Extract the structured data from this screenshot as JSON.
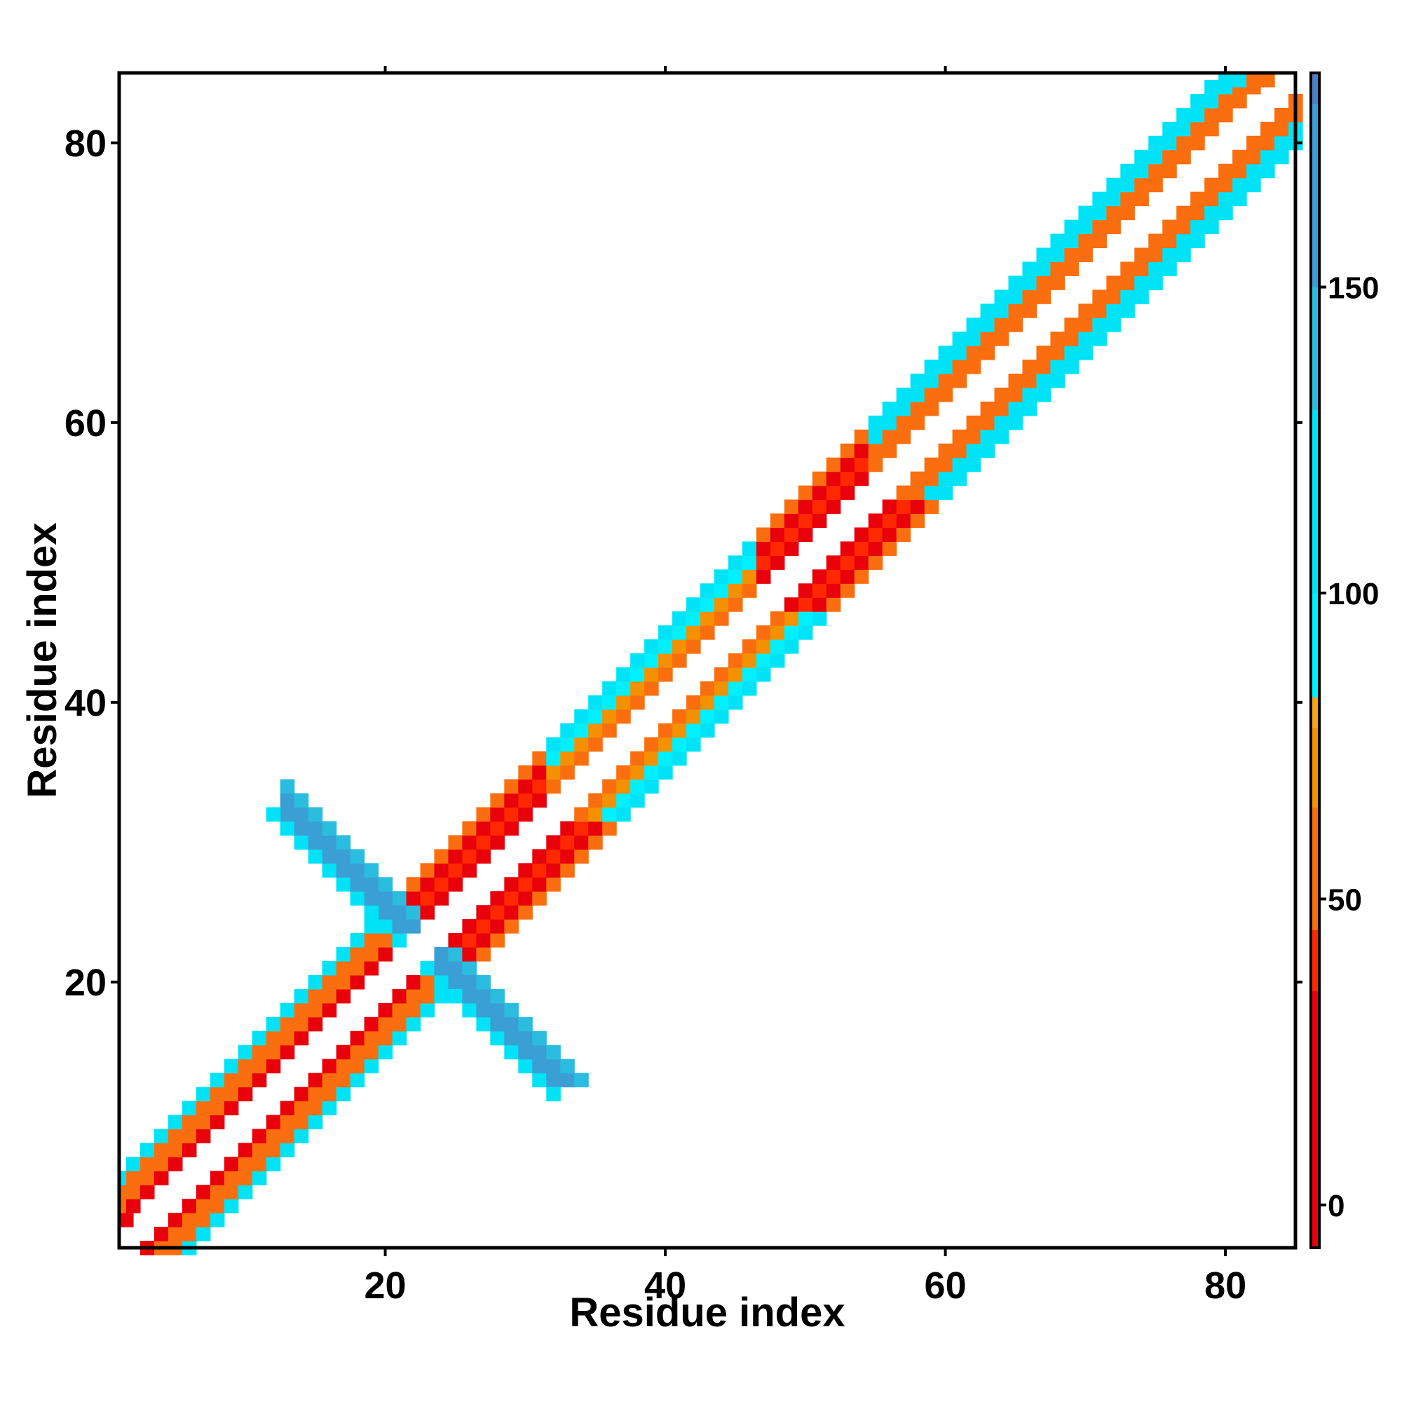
{
  "chart_data": {
    "type": "heatmap",
    "title": "",
    "xlabel": "Residue index",
    "ylabel": "Residue index",
    "xlim": [
      1,
      85
    ],
    "ylim": [
      1,
      85
    ],
    "xticks": [
      20,
      40,
      60,
      80
    ],
    "yticks": [
      20,
      40,
      60,
      80
    ],
    "grid": false,
    "colorbar": {
      "position": "right",
      "range": [
        -7,
        185
      ],
      "ticks": [
        0,
        50,
        100,
        150
      ],
      "stops": [
        {
          "value": -7,
          "color": "#e8000b"
        },
        {
          "value": 35,
          "color": "#ff2800"
        },
        {
          "value": 45,
          "color": "#fa6e0f"
        },
        {
          "value": 65,
          "color": "#f39100"
        },
        {
          "value": 78,
          "color": "#f6a31c"
        },
        {
          "value": 83,
          "color": "#00f0ff"
        },
        {
          "value": 100,
          "color": "#00e3f6"
        },
        {
          "value": 130,
          "color": "#2bbde0"
        },
        {
          "value": 150,
          "color": "#3a9fd4"
        },
        {
          "value": 180,
          "color": "#4a7fc4"
        },
        {
          "value": 185,
          "color": "#ffffff"
        }
      ]
    },
    "description_of_values": "Pairwise values by residue pair; cells shown only near the diagonal band (|i-j| in 2..5) and in an anti-diagonal strip around residues 13-32.",
    "bands": [
      {
        "from": 1,
        "to": 22,
        "offset_values": {
          "2": 10,
          "3": 45,
          "4": 60,
          "5": 110
        }
      },
      {
        "from": 22,
        "to": 32,
        "offset_values": {
          "2": 15,
          "3": 40,
          "4": 20,
          "5": 60
        }
      },
      {
        "from": 32,
        "to": 47,
        "offset_values": {
          "2": 45,
          "3": 70,
          "4": 95,
          "5": 110
        }
      },
      {
        "from": 47,
        "to": 55,
        "offset_values": {
          "2": 10,
          "3": 40,
          "4": 15,
          "5": 50
        }
      },
      {
        "from": 55,
        "to": 85,
        "offset_values": {
          "2": 45,
          "3": 60,
          "4": 100,
          "5": 120
        }
      }
    ],
    "cross_strip": {
      "i_range": [
        13,
        32
      ],
      "pair_sum": 45,
      "values": [
        125,
        160,
        150,
        135
      ]
    }
  }
}
